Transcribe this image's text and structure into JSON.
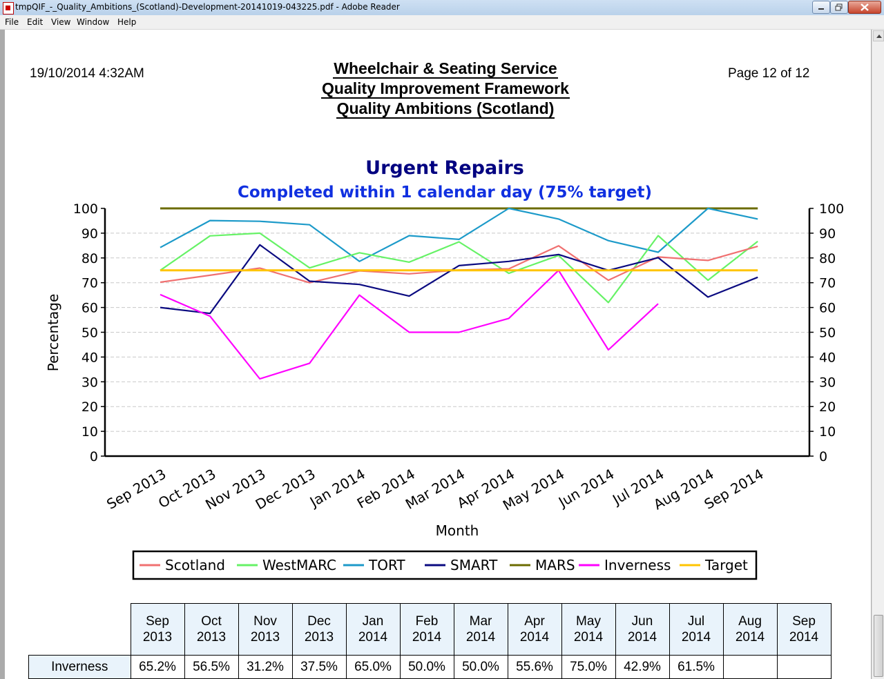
{
  "window": {
    "title": "tmpQIF_-_Quality_Ambitions_(Scotland)-Development-20141019-043225.pdf - Adobe Reader",
    "menu": [
      "File",
      "Edit",
      "View",
      "Window",
      "Help"
    ]
  },
  "report": {
    "date": "19/10/2014 4:32AM",
    "page": "Page 12 of 12",
    "title_lines": [
      "Wheelchair & Seating Service",
      "Quality Improvement Framework",
      "Quality Ambitions (Scotland)"
    ]
  },
  "colors": {
    "Scotland": "#f07070",
    "WestMARC": "#66f266",
    "TORT": "#1c9ac9",
    "SMART": "#0a0a80",
    "MARS": "#6b6b00",
    "Inverness": "#ff00ff",
    "Target": "#ffc400",
    "title": "#000080",
    "subtitle": "#1030e0"
  },
  "chart_data": {
    "type": "line",
    "title": "Urgent Repairs",
    "subtitle": "Completed within 1 calendar day (75% target)",
    "xlabel": "Month",
    "ylabel": "Percentage",
    "ylim": [
      0,
      100
    ],
    "yticks": [
      0,
      10,
      20,
      30,
      40,
      50,
      60,
      70,
      80,
      90,
      100
    ],
    "grid": true,
    "legend_position": "bottom",
    "categories": [
      "Sep 2013",
      "Oct 2013",
      "Nov 2013",
      "Dec 2013",
      "Jan 2014",
      "Feb 2014",
      "Mar 2014",
      "Apr 2014",
      "May 2014",
      "Jun 2014",
      "Jul 2014",
      "Aug 2014",
      "Sep 2014"
    ],
    "series": [
      {
        "name": "Scotland",
        "values": [
          70.2,
          73.0,
          75.9,
          70.0,
          74.8,
          73.6,
          75.1,
          75.6,
          84.9,
          71.0,
          80.4,
          79.0,
          84.7
        ]
      },
      {
        "name": "WestMARC",
        "values": [
          75.0,
          88.9,
          90.0,
          76.0,
          82.1,
          78.3,
          86.5,
          73.8,
          81.0,
          62.0,
          89.0,
          71.0,
          86.7
        ]
      },
      {
        "name": "TORT",
        "values": [
          84.2,
          95.1,
          94.8,
          93.4,
          78.6,
          89.0,
          87.5,
          100.0,
          95.7,
          87.0,
          82.3,
          100.0,
          95.7
        ]
      },
      {
        "name": "SMART",
        "values": [
          60.0,
          57.6,
          85.3,
          70.6,
          69.3,
          64.6,
          76.9,
          78.6,
          81.4,
          75.0,
          80.1,
          64.2,
          72.2
        ]
      },
      {
        "name": "MARS",
        "values": [
          100,
          100,
          100,
          100,
          100,
          100,
          100,
          100,
          100,
          100,
          100,
          100,
          100
        ]
      },
      {
        "name": "Inverness",
        "values": [
          65.2,
          56.5,
          31.2,
          37.5,
          65.0,
          50.0,
          50.0,
          55.6,
          75.0,
          42.9,
          61.5,
          null,
          null
        ]
      },
      {
        "name": "Target",
        "values": [
          75,
          75,
          75,
          75,
          75,
          75,
          75,
          75,
          75,
          75,
          75,
          75,
          75
        ]
      }
    ]
  },
  "table": {
    "columns": [
      [
        "Sep",
        "2013"
      ],
      [
        "Oct",
        "2013"
      ],
      [
        "Nov",
        "2013"
      ],
      [
        "Dec",
        "2013"
      ],
      [
        "Jan",
        "2014"
      ],
      [
        "Feb",
        "2014"
      ],
      [
        "Mar",
        "2014"
      ],
      [
        "Apr",
        "2014"
      ],
      [
        "May",
        "2014"
      ],
      [
        "Jun",
        "2014"
      ],
      [
        "Jul",
        "2014"
      ],
      [
        "Aug",
        "2014"
      ],
      [
        "Sep",
        "2014"
      ]
    ],
    "rows": [
      {
        "label": "Inverness",
        "cells": [
          "65.2%",
          "56.5%",
          "31.2%",
          "37.5%",
          "65.0%",
          "50.0%",
          "50.0%",
          "55.6%",
          "75.0%",
          "42.9%",
          "61.5%",
          "",
          ""
        ]
      }
    ]
  }
}
